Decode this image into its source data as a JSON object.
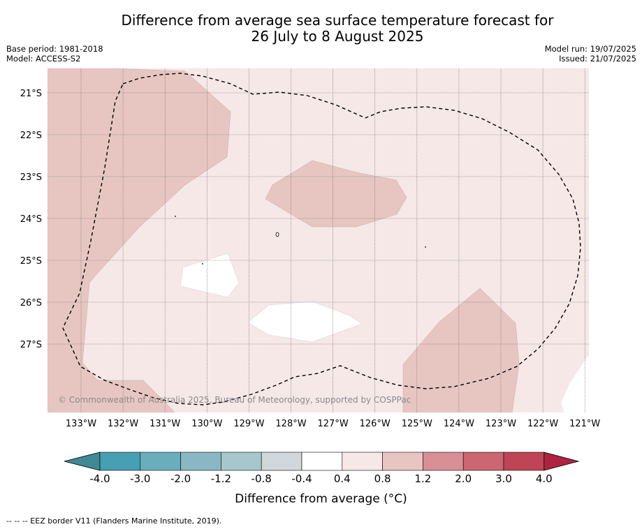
{
  "title_line1": "Difference from average sea surface temperature forecast for",
  "title_line2": "26 July to 8 August 2025",
  "base_period": "Base period: 1981-2018",
  "model": "Model: ACCESS-S2",
  "model_run": "Model run: 19/07/2025",
  "issued": "Issued: 21/07/2025",
  "copyright": "© Commonwealth of Australia 2025, Bureau of Meteorology, supported by COSPPac",
  "lat_labels": [
    "21°S",
    "22°S",
    "23°S",
    "24°S",
    "25°S",
    "26°S",
    "27°S"
  ],
  "lon_labels": [
    "133°W",
    "132°W",
    "131°W",
    "130°W",
    "129°W",
    "128°W",
    "127°W",
    "126°W",
    "125°W",
    "124°W",
    "123°W",
    "122°W",
    "121°W"
  ],
  "colorbar": {
    "ticks": [
      "-4.0",
      "-3.0",
      "-2.0",
      "-1.2",
      "-0.8",
      "-0.4",
      "0.4",
      "0.8",
      "1.2",
      "2.0",
      "3.0",
      "4.0"
    ],
    "colors": [
      "#3f8a94",
      "#469fb2",
      "#6aaebd",
      "#89b8c4",
      "#a6c7cc",
      "#d1d7da",
      "#ffffff",
      "#f5e8e7",
      "#e7c6c2",
      "#d88f96",
      "#cc6670",
      "#bf4455",
      "#ad2340"
    ],
    "label": "Difference from average ($^\\circ$C)",
    "label_display": "Difference from average (°C)"
  },
  "footnote": "--  --  -- EEZ border V11 (Flanders Marine Institute, 2019)."
}
